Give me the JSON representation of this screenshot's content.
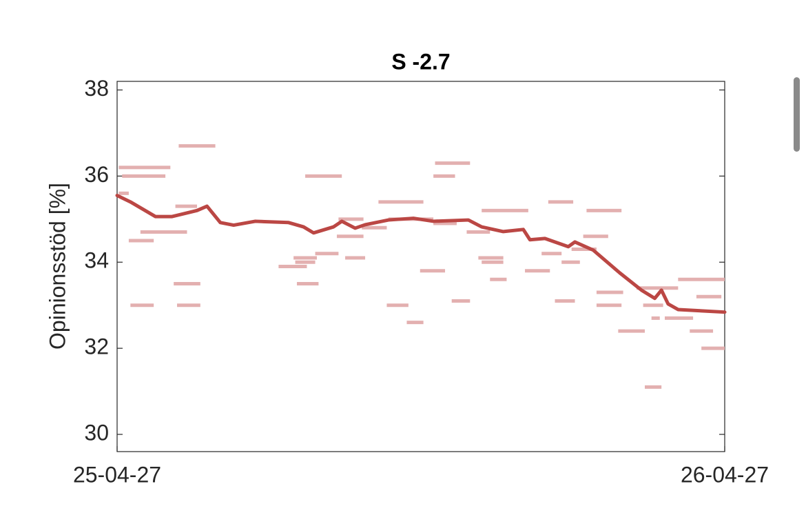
{
  "chart_data": {
    "type": "line",
    "title": "S -2.7",
    "y_label": "Opinionsstöd [%]",
    "xlim": [
      0,
      365
    ],
    "xticks": [
      {
        "value": 0,
        "label": "25-04-27"
      },
      {
        "value": 365,
        "label": "26-04-27"
      }
    ],
    "ylim": [
      29.6,
      38.2
    ],
    "yticks": [
      30,
      32,
      34,
      36,
      38
    ],
    "line": {
      "color": "#bb4744",
      "x": [
        0,
        8,
        23,
        33,
        48,
        54,
        62,
        70,
        83,
        103,
        112,
        118,
        130,
        135,
        143,
        149,
        163,
        178,
        190,
        211,
        219,
        232,
        244,
        248,
        257,
        271,
        275,
        286,
        302,
        315,
        323,
        327,
        331,
        337,
        365
      ],
      "values": [
        35.55,
        35.4,
        35.06,
        35.06,
        35.2,
        35.3,
        34.92,
        34.86,
        34.95,
        34.92,
        34.82,
        34.68,
        34.82,
        34.95,
        34.79,
        34.87,
        34.98,
        35.02,
        34.95,
        34.98,
        34.82,
        34.71,
        34.76,
        34.52,
        34.55,
        34.36,
        34.47,
        34.28,
        33.75,
        33.35,
        33.16,
        33.35,
        33.03,
        32.9,
        32.84
      ]
    },
    "polls": {
      "color": "#e3b0b0",
      "segments": [
        {
          "x": [
            1,
            32
          ],
          "value": 36.2
        },
        {
          "x": [
            3,
            29
          ],
          "value": 36.0
        },
        {
          "x": [
            1,
            7
          ],
          "value": 35.6
        },
        {
          "x": [
            7,
            22
          ],
          "value": 34.5
        },
        {
          "x": [
            14,
            42
          ],
          "value": 34.7
        },
        {
          "x": [
            8,
            22
          ],
          "value": 33.0
        },
        {
          "x": [
            37,
            59
          ],
          "value": 36.7
        },
        {
          "x": [
            35,
            48
          ],
          "value": 35.3
        },
        {
          "x": [
            34,
            50
          ],
          "value": 33.5
        },
        {
          "x": [
            36,
            50
          ],
          "value": 33.0
        },
        {
          "x": [
            97,
            114
          ],
          "value": 33.9
        },
        {
          "x": [
            106,
            120
          ],
          "value": 34.1
        },
        {
          "x": [
            107,
            119
          ],
          "value": 34.0
        },
        {
          "x": [
            108,
            121
          ],
          "value": 33.5
        },
        {
          "x": [
            113,
            135
          ],
          "value": 36.0
        },
        {
          "x": [
            119,
            133
          ],
          "value": 34.2
        },
        {
          "x": [
            132,
            148
          ],
          "value": 34.6
        },
        {
          "x": [
            133,
            148
          ],
          "value": 35.0
        },
        {
          "x": [
            137,
            149
          ],
          "value": 34.1
        },
        {
          "x": [
            147,
            162
          ],
          "value": 34.8
        },
        {
          "x": [
            157,
            184
          ],
          "value": 35.4
        },
        {
          "x": [
            162,
            175
          ],
          "value": 33.0
        },
        {
          "x": [
            174,
            184
          ],
          "value": 32.6
        },
        {
          "x": [
            163,
            190
          ],
          "value": 35.0
        },
        {
          "x": [
            182,
            197
          ],
          "value": 33.8
        },
        {
          "x": [
            190,
            203
          ],
          "value": 36.0
        },
        {
          "x": [
            191,
            212
          ],
          "value": 36.3
        },
        {
          "x": [
            190,
            204
          ],
          "value": 34.9
        },
        {
          "x": [
            201,
            212
          ],
          "value": 33.1
        },
        {
          "x": [
            210,
            224
          ],
          "value": 34.7
        },
        {
          "x": [
            217,
            232
          ],
          "value": 34.1
        },
        {
          "x": [
            219,
            232
          ],
          "value": 34.0
        },
        {
          "x": [
            219,
            247
          ],
          "value": 35.2
        },
        {
          "x": [
            224,
            234
          ],
          "value": 33.6
        },
        {
          "x": [
            245,
            260
          ],
          "value": 33.8
        },
        {
          "x": [
            255,
            267
          ],
          "value": 34.2
        },
        {
          "x": [
            259,
            274
          ],
          "value": 35.4
        },
        {
          "x": [
            263,
            275
          ],
          "value": 33.1
        },
        {
          "x": [
            267,
            278
          ],
          "value": 34.0
        },
        {
          "x": [
            273,
            288
          ],
          "value": 34.3
        },
        {
          "x": [
            280,
            295
          ],
          "value": 34.6
        },
        {
          "x": [
            282,
            303
          ],
          "value": 35.2
        },
        {
          "x": [
            288,
            304
          ],
          "value": 33.3
        },
        {
          "x": [
            288,
            303
          ],
          "value": 33.0
        },
        {
          "x": [
            301,
            317
          ],
          "value": 32.4
        },
        {
          "x": [
            312,
            337
          ],
          "value": 33.4
        },
        {
          "x": [
            316,
            328
          ],
          "value": 33.0
        },
        {
          "x": [
            317,
            327
          ],
          "value": 31.1
        },
        {
          "x": [
            321,
            326
          ],
          "value": 32.7
        },
        {
          "x": [
            329,
            346
          ],
          "value": 32.7
        },
        {
          "x": [
            337,
            365
          ],
          "value": 33.6
        },
        {
          "x": [
            344,
            358
          ],
          "value": 32.4
        },
        {
          "x": [
            348,
            363
          ],
          "value": 33.2
        },
        {
          "x": [
            351,
            365
          ],
          "value": 32.0
        }
      ]
    }
  }
}
